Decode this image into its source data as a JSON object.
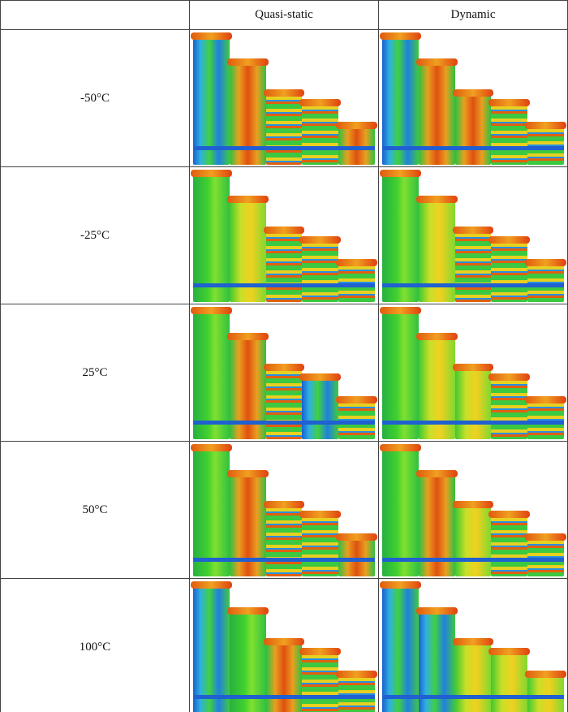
{
  "columns": [
    "Quasi-static",
    "Dynamic"
  ],
  "rows": [
    "-50°C",
    "-25°C",
    "25°C",
    "50°C",
    "100°C"
  ]
}
